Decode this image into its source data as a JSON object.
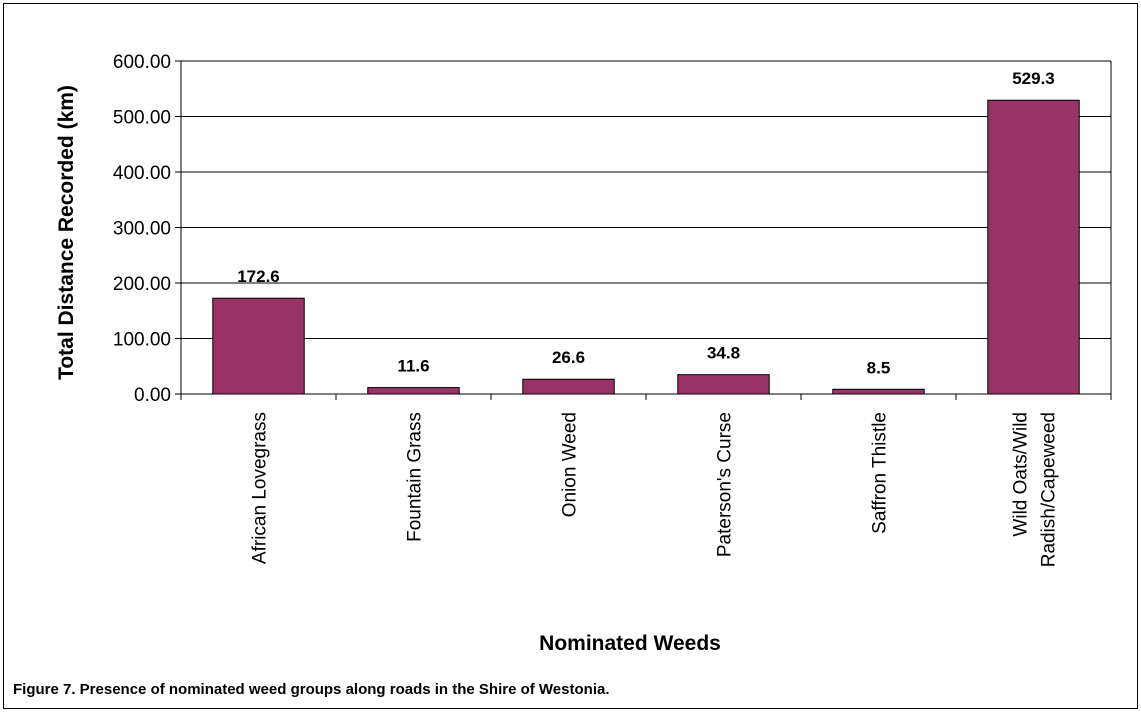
{
  "caption": "Figure 7. Presence of nominated weed groups along roads in the Shire of Westonia.",
  "colors": {
    "bar": "#993366",
    "axis": "#000000",
    "grid": "#000000"
  },
  "chart_data": {
    "type": "bar",
    "categories": [
      "African Lovegrass",
      "Fountain Grass",
      "Onion Weed",
      "Paterson's Curse",
      "Saffron Thistle",
      "Wild Oats/Wild Radish/Capeweed"
    ],
    "category_lines": [
      [
        "African Lovegrass"
      ],
      [
        "Fountain Grass"
      ],
      [
        "Onion Weed"
      ],
      [
        "Paterson's Curse"
      ],
      [
        "Saffron Thistle"
      ],
      [
        "Wild Oats/Wild",
        "Radish/Capeweed"
      ]
    ],
    "values": [
      172.6,
      11.6,
      26.6,
      34.8,
      8.5,
      529.3
    ],
    "value_labels": [
      "172.6",
      "11.6",
      "26.6",
      "34.8",
      "8.5",
      "529.3"
    ],
    "title": "",
    "xlabel": "Nominated Weeds",
    "ylabel": "Total Distance Recorded (km)",
    "ylim": [
      0,
      600
    ],
    "yticks": [
      0,
      100,
      200,
      300,
      400,
      500,
      600
    ],
    "ytick_labels": [
      "0.00",
      "100.00",
      "200.00",
      "300.00",
      "400.00",
      "500.00",
      "600.00"
    ],
    "grid": true,
    "legend": "none"
  }
}
